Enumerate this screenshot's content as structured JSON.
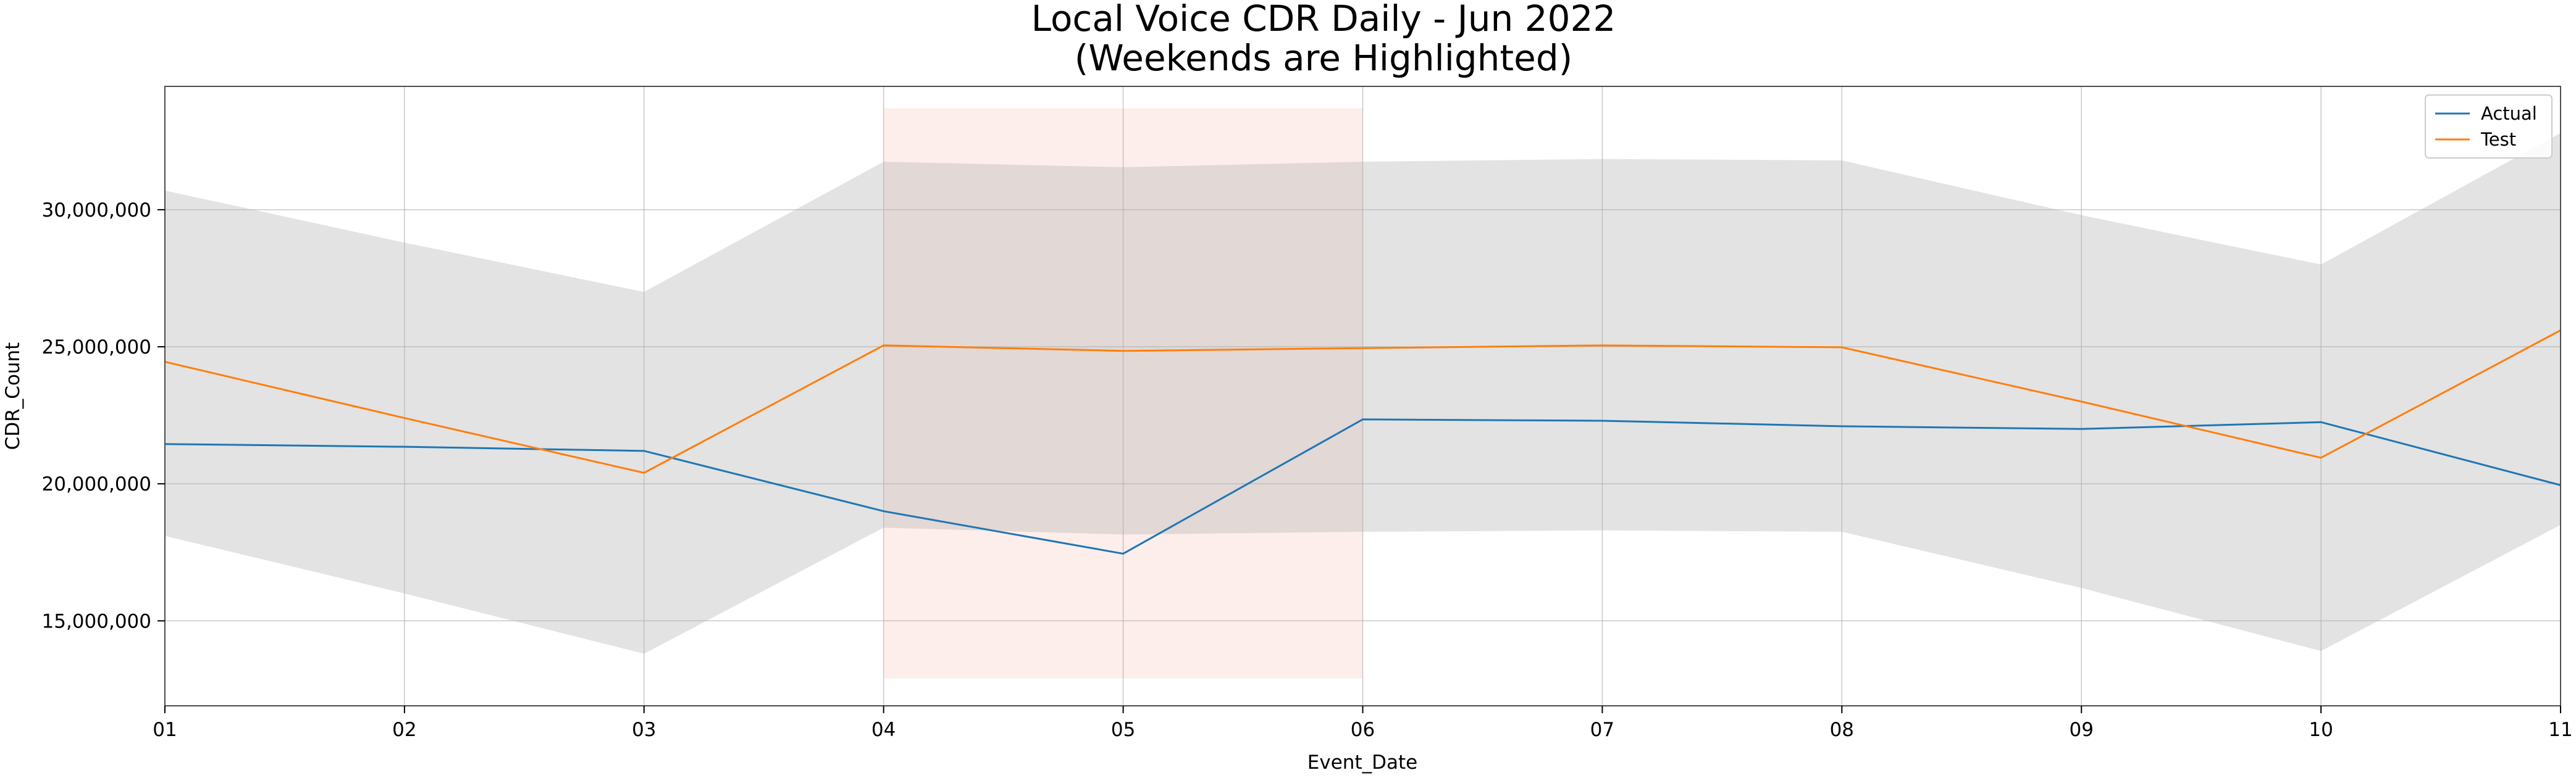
{
  "chart_data": {
    "type": "line",
    "title_line1": "Local Voice CDR Daily - Jun 2022",
    "title_line2": "(Weekends are Highlighted)",
    "xlabel": "Event_Date",
    "ylabel": "CDR_Count",
    "x": [
      "01",
      "02",
      "03",
      "04",
      "05",
      "06",
      "07",
      "08",
      "09",
      "10",
      "11"
    ],
    "ylim": [
      11900000,
      34500000
    ],
    "yticks": [
      15000000,
      20000000,
      25000000,
      30000000
    ],
    "ytick_labels": [
      "15,000,000",
      "20,000,000",
      "25,000,000",
      "30,000,000"
    ],
    "grid": true,
    "legend_position": "top-right",
    "series": [
      {
        "name": "Actual",
        "color": "#1f77b4",
        "values": [
          21450000,
          21350000,
          21200000,
          19000000,
          17450000,
          22350000,
          22300000,
          22100000,
          22000000,
          22250000,
          19950000
        ]
      },
      {
        "name": "Test",
        "color": "#ff7f0e",
        "values": [
          24450000,
          22400000,
          20400000,
          25050000,
          24850000,
          24950000,
          25050000,
          24980000,
          23000000,
          20950000,
          25600000
        ],
        "band_upper": [
          30700000,
          28800000,
          27000000,
          31750000,
          31550000,
          31750000,
          31850000,
          31800000,
          29800000,
          28000000,
          32800000
        ],
        "band_lower": [
          18100000,
          16000000,
          13800000,
          18400000,
          18150000,
          18250000,
          18300000,
          18250000,
          16200000,
          13900000,
          18500000
        ],
        "band_color": "#b0b0b0"
      }
    ],
    "weekend_highlight": {
      "x_start": "04",
      "x_end": "06",
      "y_range": [
        12900000,
        33700000
      ],
      "color": "#fbd5d0"
    }
  }
}
